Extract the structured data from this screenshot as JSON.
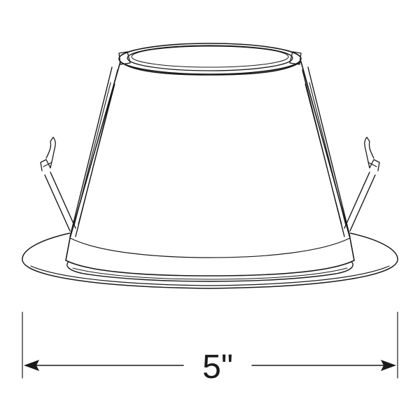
{
  "dimension": {
    "label": "5\""
  },
  "colors": {
    "stroke": "#1a1a1a",
    "background": "#ffffff"
  }
}
